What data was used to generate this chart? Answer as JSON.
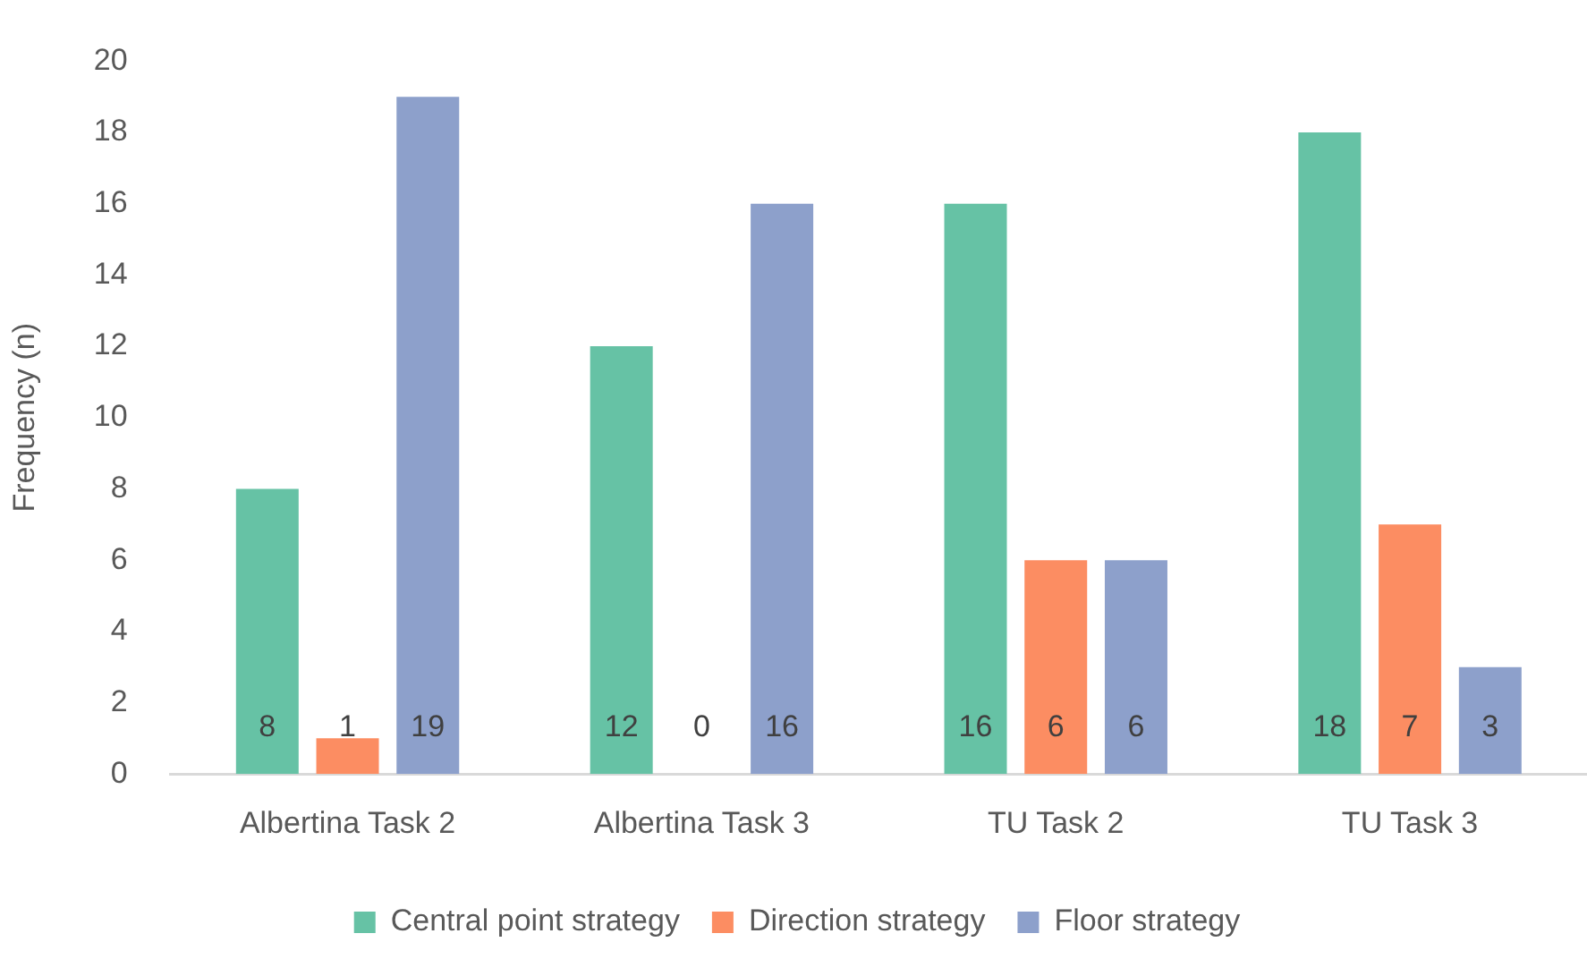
{
  "chart_data": {
    "type": "bar",
    "ylabel": "Frequency (n)",
    "categories": [
      "Albertina Task 2",
      "Albertina Task 3",
      "TU Task 2",
      "TU Task 3"
    ],
    "series": [
      {
        "name": "Central point strategy",
        "color": "#66c2a5",
        "values": [
          8,
          12,
          16,
          18
        ]
      },
      {
        "name": "Direction strategy",
        "color": "#fc8d62",
        "values": [
          1,
          0,
          6,
          7
        ]
      },
      {
        "name": "Floor strategy",
        "color": "#8da0cb",
        "values": [
          19,
          16,
          6,
          3
        ]
      }
    ],
    "ylim": [
      0,
      20
    ],
    "yticks": [
      0,
      2,
      4,
      6,
      8,
      10,
      12,
      14,
      16,
      18,
      20
    ],
    "data_labels": true,
    "legend": "bottom"
  }
}
